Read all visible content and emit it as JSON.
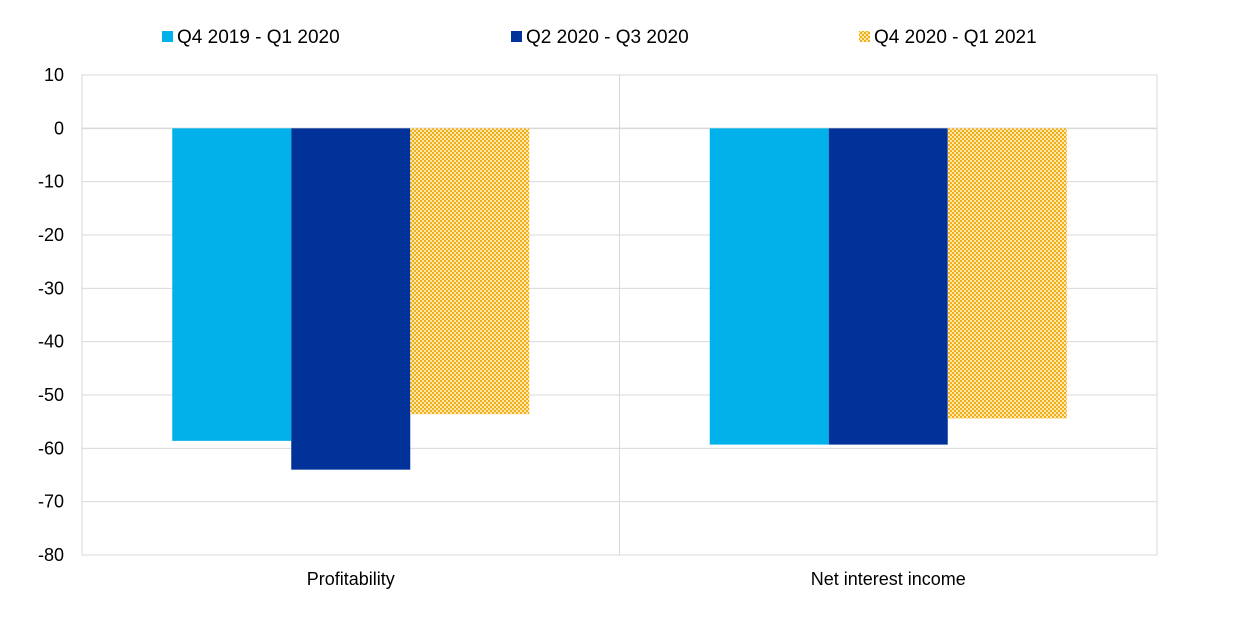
{
  "chart_data": {
    "type": "bar",
    "title": "",
    "xlabel": "",
    "ylabel": "",
    "categories": [
      "Profitability",
      "Net interest income"
    ],
    "series": [
      {
        "name": "Q4 2019 - Q1 2020",
        "values": [
          -58.6,
          -59.3
        ],
        "color": "#00b1ea",
        "pattern": "solid"
      },
      {
        "name": "Q2 2020 - Q3 2020",
        "values": [
          -64.0,
          -59.3
        ],
        "color": "#003299",
        "pattern": "solid"
      },
      {
        "name": "Q4 2020 - Q1 2021",
        "values": [
          -53.6,
          -54.4
        ],
        "color": "#ffb400",
        "pattern": "checker"
      }
    ],
    "ylim": [
      -80,
      10
    ],
    "yticks": [
      10,
      0,
      -10,
      -20,
      -30,
      -40,
      -50,
      -60,
      -70,
      -80
    ],
    "grid": true,
    "legend_position": "top"
  }
}
